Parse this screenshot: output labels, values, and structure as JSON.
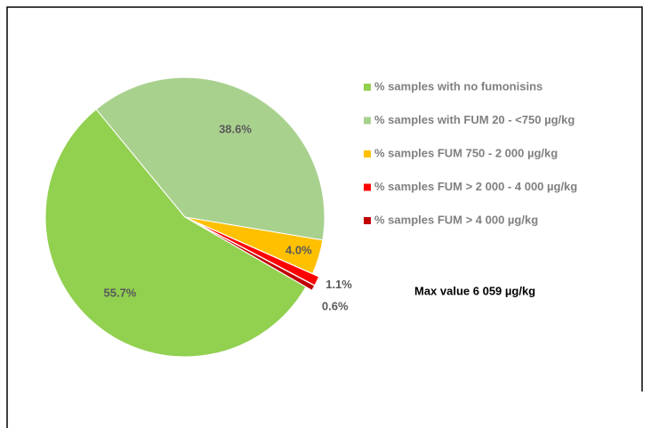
{
  "chart_data": {
    "type": "pie",
    "categories": [
      "% samples with no fumonisins",
      "% samples with FUM 20 - <750 µg/kg",
      "% samples FUM 750 - 2 000 µg/kg",
      "% samples FUM > 2 000 - 4 000 µg/kg",
      "% samples FUM > 4 000 µg/kg"
    ],
    "values": [
      55.7,
      38.6,
      4.0,
      1.1,
      0.6
    ],
    "value_labels": [
      "55.7%",
      "38.6%",
      "4.0%",
      "1.1%",
      "0.6%"
    ],
    "colors": [
      "#92d050",
      "#a9d18e",
      "#ffc000",
      "#ff0000",
      "#c00000"
    ],
    "startangle": 120,
    "explode": [
      0,
      0,
      0,
      0.05,
      0.05
    ],
    "legend": "right",
    "annotation": "Max value 6 059 µg/kg"
  }
}
